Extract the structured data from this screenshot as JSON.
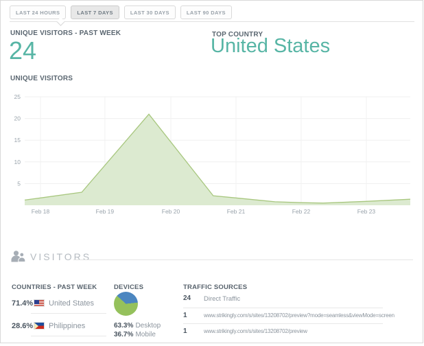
{
  "tabs": {
    "items": [
      {
        "label": "LAST 24 HOURS",
        "active": false
      },
      {
        "label": "LAST 7 DAYS",
        "active": true
      },
      {
        "label": "LAST 30 DAYS",
        "active": false
      },
      {
        "label": "LAST 90 DAYS",
        "active": false
      }
    ]
  },
  "stats": {
    "unique_visitors_label": "UNIQUE VISITORS - PAST WEEK",
    "unique_visitors_value": "24",
    "top_country_label": "TOP COUNTRY",
    "top_country_value": "United States",
    "accent_color": "#57b5a5"
  },
  "chart_data": [
    {
      "type": "area",
      "title": "UNIQUE VISITORS",
      "xlabel": "",
      "ylabel": "",
      "ylim": [
        0,
        25
      ],
      "y_ticks": [
        5,
        10,
        15,
        20,
        25
      ],
      "x_tick_labels": [
        "Feb 18",
        "Feb 19",
        "Feb 20",
        "Feb 21",
        "Feb 22",
        "Feb 23"
      ],
      "x_tick_positions": [
        0.041,
        0.208,
        0.379,
        0.548,
        0.717,
        0.886
      ],
      "grid": true,
      "fill_color": "#dcead0",
      "stroke_color": "#a8c77f",
      "grid_color_h": "#efefef",
      "grid_color_v": "#f2f2f2",
      "tick_color": "#99a3ab",
      "points": [
        {
          "x": 0.0,
          "y": 1.2
        },
        {
          "x": 0.041,
          "y": 1.7
        },
        {
          "x": 0.148,
          "y": 3.0
        },
        {
          "x": 0.322,
          "y": 21.0
        },
        {
          "x": 0.489,
          "y": 2.2
        },
        {
          "x": 0.548,
          "y": 1.7
        },
        {
          "x": 0.649,
          "y": 0.8
        },
        {
          "x": 0.717,
          "y": 0.6
        },
        {
          "x": 0.774,
          "y": 0.5
        },
        {
          "x": 0.886,
          "y": 0.9
        },
        {
          "x": 1.0,
          "y": 1.4
        }
      ]
    },
    {
      "type": "pie",
      "title": "DEVICES",
      "labels": [
        "Desktop",
        "Mobile"
      ],
      "values": [
        63.3,
        36.7
      ],
      "colors": [
        "#95c15c",
        "#4c86c0"
      ],
      "start_angle_deg": -48
    }
  ],
  "visitors_section": {
    "title": "VISITORS"
  },
  "countries": {
    "header": "COUNTRIES - PAST WEEK",
    "rows": [
      {
        "percent": "71.4%",
        "name": "United States",
        "flag": "us-flag-icon"
      },
      {
        "percent": "28.6%",
        "name": "Philippines",
        "flag": "ph-flag-icon"
      }
    ]
  },
  "devices": {
    "header": "DEVICES",
    "legend": [
      {
        "percent": "63.3%",
        "label": "Desktop"
      },
      {
        "percent": "36.7%",
        "label": "Mobile"
      }
    ]
  },
  "traffic": {
    "header": "TRAFFIC SOURCES",
    "rows": [
      {
        "count": "24",
        "source": "Direct Traffic"
      },
      {
        "count": "1",
        "source": "www.strikingly.com/s/sites/13208702/preview?mode=seamless&viewMode=screen"
      },
      {
        "count": "1",
        "source": "www.strikingly.com/s/sites/13208702/preview"
      }
    ]
  }
}
